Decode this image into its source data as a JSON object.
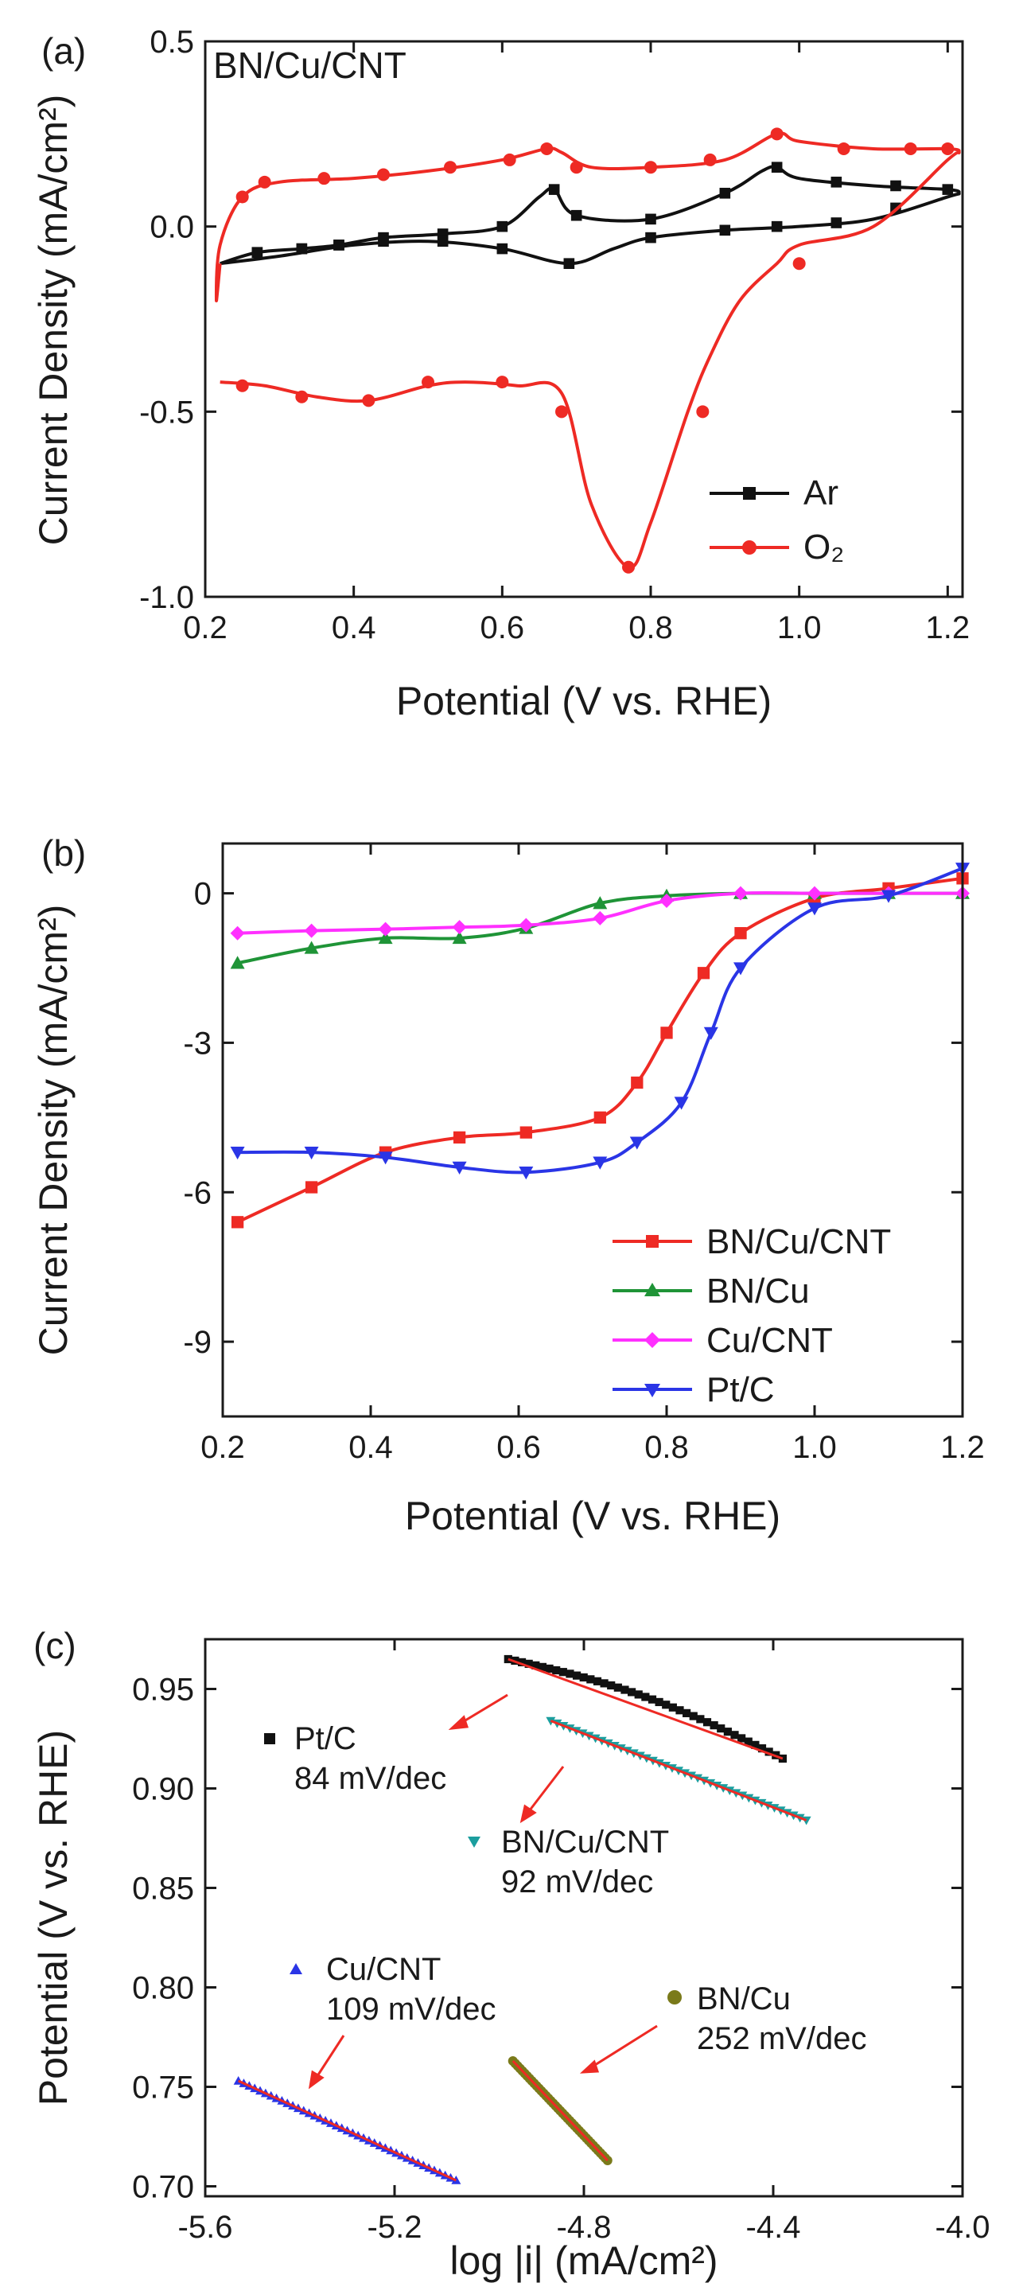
{
  "chart_data": [
    {
      "panel_label": "(a)",
      "type": "line",
      "title": "BN/Cu/CNT",
      "xlabel": "Potential (V vs. RHE)",
      "ylabel": "Current Density (mA/cm²)",
      "xlim": [
        0.2,
        1.22
      ],
      "ylim": [
        -1.0,
        0.5
      ],
      "xticks": [
        0.2,
        0.4,
        0.6,
        0.8,
        1.0,
        1.2
      ],
      "xtick_labels": [
        "0.2",
        "0.4",
        "0.6",
        "0.8",
        "1.0",
        "1.2"
      ],
      "yticks": [
        -1.0,
        -0.5,
        0.0,
        0.5
      ],
      "ytick_labels": [
        "-1.0",
        "-0.5",
        "0.0",
        "0.5"
      ],
      "legend_position": "bottom-right",
      "series": [
        {
          "name": "Ar",
          "color": "#111111",
          "marker": "square",
          "x": [
            0.22,
            0.27,
            0.33,
            0.38,
            0.44,
            0.52,
            0.6,
            0.65,
            0.67,
            0.7,
            0.8,
            0.9,
            0.95,
            0.97,
            1.0,
            1.1,
            1.2,
            1.215,
            1.2,
            1.1,
            1.0,
            0.9,
            0.8,
            0.75,
            0.69,
            0.6,
            0.5,
            0.4,
            0.3,
            0.22
          ],
          "y": [
            -0.1,
            -0.07,
            -0.06,
            -0.05,
            -0.03,
            -0.02,
            0.0,
            0.08,
            0.1,
            0.03,
            0.02,
            0.09,
            0.15,
            0.16,
            0.13,
            0.11,
            0.1,
            0.09,
            0.08,
            0.02,
            0.0,
            -0.01,
            -0.03,
            -0.06,
            -0.1,
            -0.06,
            -0.04,
            -0.05,
            -0.08,
            -0.1
          ],
          "markers_x": [
            0.27,
            0.33,
            0.38,
            0.44,
            0.52,
            0.6,
            0.67,
            0.7,
            0.8,
            0.9,
            0.97,
            1.05,
            1.13,
            1.2,
            1.13,
            1.05,
            0.97,
            0.9,
            0.8,
            0.69,
            0.6,
            0.52,
            0.44,
            0.38,
            0.33,
            0.27
          ],
          "markers_y": [
            -0.07,
            -0.06,
            -0.05,
            -0.03,
            -0.02,
            0.0,
            0.1,
            0.03,
            0.02,
            0.09,
            0.16,
            0.12,
            0.11,
            0.1,
            0.05,
            0.01,
            0.0,
            -0.01,
            -0.03,
            -0.1,
            -0.06,
            -0.04,
            -0.04,
            -0.05,
            -0.06,
            -0.07
          ]
        },
        {
          "name": "O₂",
          "color": "#ee2a24",
          "marker": "circle",
          "x": [
            0.22,
            0.215,
            0.22,
            0.25,
            0.3,
            0.4,
            0.5,
            0.6,
            0.66,
            0.68,
            0.72,
            0.8,
            0.9,
            0.97,
            1.0,
            1.1,
            1.2,
            1.215,
            1.2,
            1.1,
            1.0,
            0.97,
            0.92,
            0.88,
            0.85,
            0.8,
            0.77,
            0.72,
            0.68,
            0.62,
            0.55,
            0.5,
            0.42,
            0.35,
            0.28,
            0.22
          ],
          "y": [
            -0.1,
            -0.2,
            -0.05,
            0.08,
            0.12,
            0.13,
            0.15,
            0.18,
            0.21,
            0.2,
            0.16,
            0.16,
            0.18,
            0.25,
            0.23,
            0.21,
            0.21,
            0.2,
            0.18,
            0.0,
            -0.05,
            -0.1,
            -0.2,
            -0.35,
            -0.5,
            -0.8,
            -0.92,
            -0.75,
            -0.45,
            -0.43,
            -0.42,
            -0.43,
            -0.47,
            -0.46,
            -0.43,
            -0.42
          ],
          "markers_x": [
            0.25,
            0.28,
            0.36,
            0.44,
            0.53,
            0.61,
            0.66,
            0.7,
            0.8,
            0.88,
            0.97,
            1.06,
            1.15,
            1.2,
            1.0,
            0.87,
            0.77,
            0.68,
            0.6,
            0.5,
            0.42,
            0.33,
            0.25
          ],
          "markers_y": [
            0.08,
            0.12,
            0.13,
            0.14,
            0.16,
            0.18,
            0.21,
            0.16,
            0.16,
            0.18,
            0.25,
            0.21,
            0.21,
            0.21,
            -0.1,
            -0.5,
            -0.92,
            -0.5,
            -0.42,
            -0.42,
            -0.47,
            -0.46,
            -0.43
          ]
        }
      ]
    },
    {
      "panel_label": "(b)",
      "type": "line",
      "xlabel": "Potential (V vs. RHE)",
      "ylabel": "Current Density (mA/cm²)",
      "xlim": [
        0.2,
        1.2
      ],
      "ylim": [
        -10.5,
        1.0
      ],
      "xticks": [
        0.2,
        0.4,
        0.6,
        0.8,
        1.0,
        1.2
      ],
      "xtick_labels": [
        "0.2",
        "0.4",
        "0.6",
        "0.8",
        "1.0",
        "1.2"
      ],
      "yticks": [
        0,
        -3,
        -6,
        -9
      ],
      "ytick_labels": [
        "0",
        "-3",
        "-6",
        "-9"
      ],
      "legend_position": "center-right",
      "series": [
        {
          "name": "BN/Cu/CNT",
          "color": "#ee2a24",
          "marker": "square",
          "x": [
            0.22,
            0.32,
            0.42,
            0.52,
            0.61,
            0.71,
            0.76,
            0.8,
            0.85,
            0.9,
            1.0,
            1.1,
            1.2
          ],
          "y": [
            -6.6,
            -5.9,
            -5.2,
            -4.9,
            -4.8,
            -4.5,
            -3.8,
            -2.8,
            -1.6,
            -0.8,
            -0.1,
            0.1,
            0.3
          ]
        },
        {
          "name": "BN/Cu",
          "color": "#1f9437",
          "marker": "triangle-up",
          "x": [
            0.22,
            0.32,
            0.42,
            0.52,
            0.61,
            0.71,
            0.8,
            0.9,
            1.0,
            1.1,
            1.2
          ],
          "y": [
            -1.4,
            -1.1,
            -0.9,
            -0.9,
            -0.7,
            -0.2,
            -0.05,
            0.0,
            0.0,
            0.0,
            0.0
          ]
        },
        {
          "name": "Cu/CNT",
          "color": "#ff30ff",
          "marker": "diamond",
          "x": [
            0.22,
            0.32,
            0.42,
            0.52,
            0.61,
            0.71,
            0.8,
            0.9,
            1.0,
            1.1,
            1.2
          ],
          "y": [
            -0.8,
            -0.75,
            -0.72,
            -0.68,
            -0.64,
            -0.5,
            -0.15,
            0.0,
            0.0,
            0.0,
            0.0
          ]
        },
        {
          "name": "Pt/C",
          "color": "#2a35e6",
          "marker": "triangle-down",
          "x": [
            0.22,
            0.32,
            0.42,
            0.52,
            0.61,
            0.71,
            0.76,
            0.82,
            0.86,
            0.9,
            1.0,
            1.1,
            1.2
          ],
          "y": [
            -5.2,
            -5.2,
            -5.3,
            -5.5,
            -5.6,
            -5.4,
            -5.0,
            -4.2,
            -2.8,
            -1.5,
            -0.3,
            -0.05,
            0.5
          ]
        }
      ]
    },
    {
      "panel_label": "(c)",
      "type": "scatter",
      "xlabel": "log |i| (mA/cm²)",
      "ylabel": "Potential (V vs. RHE)",
      "xlim": [
        -5.6,
        -4.0
      ],
      "ylim": [
        0.695,
        0.975
      ],
      "xticks": [
        -5.6,
        -5.2,
        -4.8,
        -4.4,
        -4.0
      ],
      "xtick_labels": [
        "-5.6",
        "-5.2",
        "-4.8",
        "-4.4",
        "-4.0"
      ],
      "yticks": [
        0.7,
        0.75,
        0.8,
        0.85,
        0.9,
        0.95
      ],
      "ytick_labels": [
        "0.70",
        "0.75",
        "0.80",
        "0.85",
        "0.90",
        "0.95"
      ],
      "fit_line_color": "#ee2a24",
      "series": [
        {
          "name": "Pt/C",
          "tafel_slope": "84 mV/dec",
          "color": "#111111",
          "marker": "square",
          "x_range": [
            -4.96,
            -4.38
          ],
          "y_range": [
            0.965,
            0.915
          ],
          "curvature": 0.006
        },
        {
          "name": "BN/Cu/CNT",
          "tafel_slope": "92 mV/dec",
          "color": "#1b9e9e",
          "marker": "triangle-down",
          "x_range": [
            -4.87,
            -4.33
          ],
          "y_range": [
            0.934,
            0.884
          ],
          "curvature": 0
        },
        {
          "name": "Cu/CNT",
          "tafel_slope": "109 mV/dec",
          "color": "#2a35e6",
          "marker": "triangle-up",
          "x_range": [
            -5.53,
            -5.07
          ],
          "y_range": [
            0.753,
            0.703
          ],
          "curvature": 0
        },
        {
          "name": "BN/Cu",
          "tafel_slope": "252 mV/dec",
          "color": "#7a7a1a",
          "marker": "circle",
          "x_range": [
            -4.95,
            -4.75
          ],
          "y_range": [
            0.763,
            0.713
          ],
          "curvature": 0
        }
      ]
    }
  ]
}
